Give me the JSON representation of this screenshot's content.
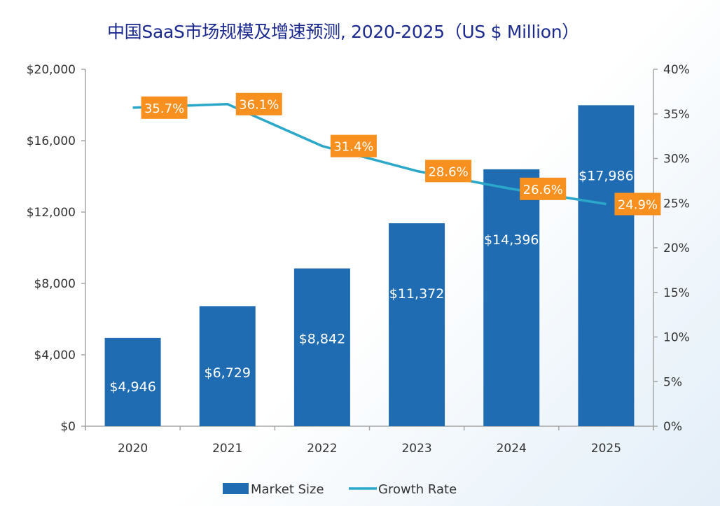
{
  "chart_data": {
    "type": "bar",
    "title": "中国SaaS市场规模及增速预测, 2020-2025（US $ Million）",
    "xlabel": "",
    "ylabel": "",
    "categories": [
      "2020",
      "2021",
      "2022",
      "2023",
      "2024",
      "2025"
    ],
    "series": [
      {
        "name": "Market Size",
        "type": "bar",
        "axis": "left",
        "values": [
          4946,
          6729,
          8842,
          11372,
          14396,
          17986
        ],
        "labels": [
          "$4,946",
          "$6,729",
          "$8,842",
          "$11,372",
          "$14,396",
          "$17,986"
        ],
        "color": "#1f6cb3"
      },
      {
        "name": "Growth Rate",
        "type": "line",
        "axis": "right",
        "values": [
          35.7,
          36.1,
          31.4,
          28.6,
          26.6,
          24.9
        ],
        "labels": [
          "35.7%",
          "36.1%",
          "31.4%",
          "28.6%",
          "26.6%",
          "24.9%"
        ],
        "color": "#2ba7c9",
        "label_bg": "#f7901e"
      }
    ],
    "ylim": [
      0,
      20000
    ],
    "y2lim": [
      0,
      40
    ],
    "yticks": [
      {
        "value": 0,
        "label": "$0"
      },
      {
        "value": 4000,
        "label": "$4,000"
      },
      {
        "value": 8000,
        "label": "$8,000"
      },
      {
        "value": 12000,
        "label": "$12,000"
      },
      {
        "value": 16000,
        "label": "$16,000"
      },
      {
        "value": 20000,
        "label": "$20,000"
      }
    ],
    "y2ticks": [
      {
        "value": 0,
        "label": "0%"
      },
      {
        "value": 5,
        "label": "5%"
      },
      {
        "value": 10,
        "label": "10%"
      },
      {
        "value": 15,
        "label": "15%"
      },
      {
        "value": 20,
        "label": "20%"
      },
      {
        "value": 25,
        "label": "25%"
      },
      {
        "value": 30,
        "label": "30%"
      },
      {
        "value": 35,
        "label": "35%"
      },
      {
        "value": 40,
        "label": "40%"
      }
    ],
    "grid": false,
    "legend": {
      "position": "bottom-center",
      "items": [
        {
          "label": "Market Size",
          "shape": "rect"
        },
        {
          "label": "Growth Rate",
          "shape": "line"
        }
      ]
    }
  }
}
